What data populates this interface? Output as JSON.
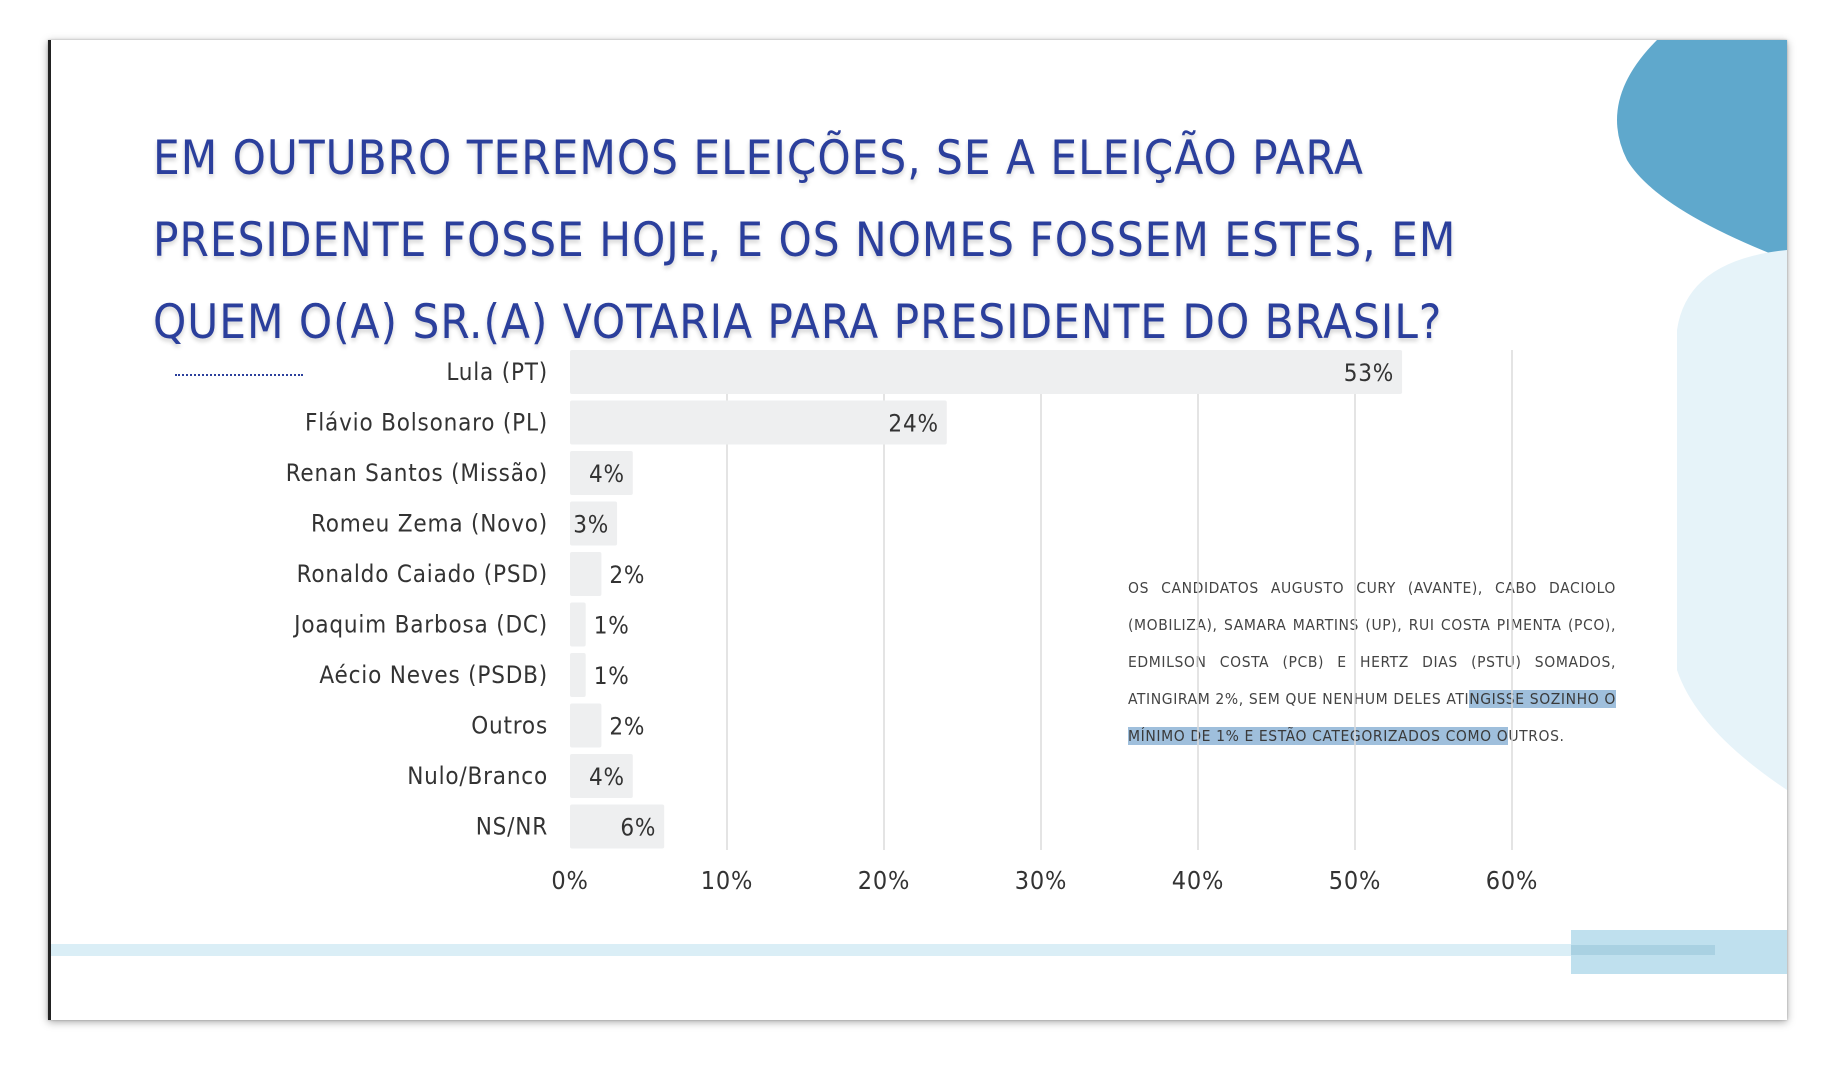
{
  "slide": {
    "title": "EM OUTUBRO TEREMOS ELEIÇÕES, SE A ELEIÇÃO PARA PRESIDENTE FOSSE HOJE, E OS NOMES FOSSEM ESTES, EM QUEM O(A) SR.(A) VOTARIA PARA PRESIDENTE DO BRASIL?",
    "note": {
      "before": "OS CANDIDATOS AUGUSTO CURY (AVANTE), CABO DACIOLO (MOBILIZA), SAMARA MARTINS (UP), RUI COSTA PIMENTA (PCO), EDMILSON COSTA (PCB) E HERTZ DIAS (PSTU) SOMADOS, ATINGIRAM 2%, SEM QUE NENHUM DELES ATI",
      "highlight": "NGISSE SOZINHO O MÍNIMO DE 1% E ESTÃO CATEGORIZADOS COMO O",
      "after": "UTROS."
    }
  },
  "colors": {
    "title": "#2b3f9c",
    "bar": "#eeeff0",
    "grid": "#dcdcdc",
    "accent_dark": "#5fa8cc",
    "accent_light": "#e6f3f9",
    "highlight": "#9fbfdc"
  },
  "chart_data": {
    "type": "bar",
    "orientation": "horizontal",
    "categories": [
      "Lula (PT)",
      "Flávio Bolsonaro (PL)",
      "Renan Santos (Missão)",
      "Romeu Zema (Novo)",
      "Ronaldo Caiado (PSD)",
      "Joaquim Barbosa (DC)",
      "Aécio Neves (PSDB)",
      "Outros",
      "Nulo/Branco",
      "NS/NR"
    ],
    "values": [
      53,
      24,
      4,
      3,
      2,
      1,
      1,
      2,
      4,
      6
    ],
    "data_labels": [
      "53%",
      "24%",
      "4%",
      "3%",
      "2%",
      "1%",
      "1%",
      "2%",
      "4%",
      "6%"
    ],
    "xlim": [
      0,
      60
    ],
    "xticks": [
      0,
      10,
      20,
      30,
      40,
      50,
      60
    ],
    "xtick_labels": [
      "0%",
      "10%",
      "20%",
      "30%",
      "40%",
      "50%",
      "60%"
    ],
    "grid": true,
    "legend": "none"
  }
}
